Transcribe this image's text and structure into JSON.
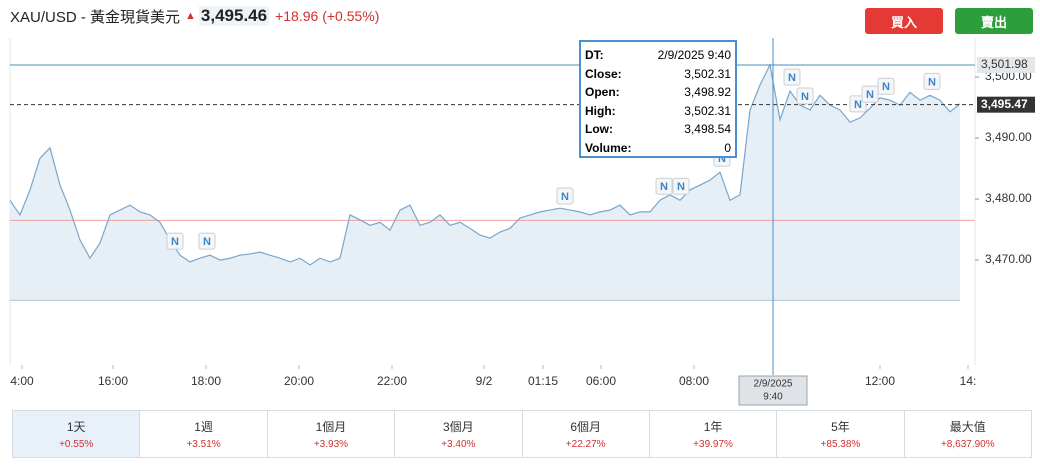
{
  "header": {
    "title": "XAU/USD - 黃金現貨美元",
    "price": "3,495.46",
    "change": "+18.96 (+0.55%)",
    "buy": "買入",
    "sell": "賣出"
  },
  "chart": {
    "type": "line",
    "color": "#7aa6c9",
    "xlim": [
      0,
      96.5
    ],
    "ylim": [
      3452.8,
      3506.4
    ],
    "xticks": [
      {
        "value": 1.2,
        "label": "4:00"
      },
      {
        "value": 10.3,
        "label": "16:00"
      },
      {
        "value": 19.6,
        "label": "18:00"
      },
      {
        "value": 28.9,
        "label": "20:00"
      },
      {
        "value": 38.2,
        "label": "22:00"
      },
      {
        "value": 47.4,
        "label": "9/2"
      },
      {
        "value": 53.3,
        "label": "01:15"
      },
      {
        "value": 59.1,
        "label": "06:00"
      },
      {
        "value": 68.4,
        "label": "08:00"
      },
      {
        "value": 87,
        "label": "12:00"
      },
      {
        "value": 95.8,
        "label": "14:"
      }
    ],
    "yticks": [
      {
        "value": 3470,
        "label": "3,470.00"
      },
      {
        "value": 3480,
        "label": "3,480.00"
      },
      {
        "value": 3490,
        "label": "3,490.00"
      },
      {
        "value": 3500,
        "label": "3,500.00"
      }
    ],
    "values": [
      3479.8,
      3477.4,
      3481.5,
      3486.7,
      3488.4,
      3482.3,
      3478.2,
      3473.3,
      3470.3,
      3472.8,
      3477.4,
      3478.2,
      3479.0,
      3477.9,
      3477.4,
      3476.2,
      3473.3,
      3470.8,
      3469.7,
      3470.3,
      3470.8,
      3470.0,
      3470.3,
      3470.8,
      3471.0,
      3471.3,
      3470.8,
      3470.3,
      3469.7,
      3470.3,
      3469.2,
      3470.3,
      3469.7,
      3470.3,
      3477.4,
      3476.6,
      3475.7,
      3476.2,
      3474.9,
      3478.2,
      3479.0,
      3475.7,
      3476.2,
      3477.4,
      3475.7,
      3476.2,
      3475.2,
      3474.1,
      3473.6,
      3474.6,
      3475.2,
      3476.9,
      3477.4,
      3477.9,
      3478.2,
      3478.5,
      3478.2,
      3477.9,
      3477.4,
      3477.9,
      3478.2,
      3479.0,
      3477.4,
      3477.9,
      3477.9,
      3479.8,
      3480.7,
      3479.8,
      3481.5,
      3482.3,
      3483.1,
      3484.4,
      3479.8,
      3480.7,
      3494.6,
      3498.7,
      3502.0,
      3493.0,
      3497.7,
      3495.4,
      3494.6,
      3497.0,
      3495.4,
      3494.6,
      3492.6,
      3493.3,
      3494.9,
      3496.6,
      3496.2,
      3495.4,
      3497.5,
      3496.2,
      3497.0,
      3496.2,
      3494.3,
      3495.6
    ],
    "area_floor": 3463.4,
    "reference_line": 3476.5,
    "price_lines": [
      {
        "value": 3501.98,
        "label": "3,501.98",
        "color": "#4a8fb8"
      },
      {
        "value": 3495.47,
        "label": "3,495.47",
        "color": "#333333"
      }
    ],
    "news_markers": [
      {
        "x": 16.5,
        "label": "N"
      },
      {
        "x": 19.7,
        "label": "N"
      },
      {
        "x": 55.5,
        "label": "N"
      },
      {
        "x": 65.4,
        "label": "N"
      },
      {
        "x": 67.1,
        "label": "N"
      },
      {
        "x": 71.2,
        "label": "N"
      },
      {
        "x": 78.2,
        "label": "N"
      },
      {
        "x": 79.5,
        "label": "N"
      },
      {
        "x": 84.8,
        "label": "N"
      },
      {
        "x": 86,
        "label": "N"
      },
      {
        "x": 87.6,
        "label": "N"
      },
      {
        "x": 92.2,
        "label": "N"
      }
    ],
    "crosshair": {
      "x": 76.3,
      "label": [
        "2/9/2025",
        "9:40"
      ]
    }
  },
  "tooltip": {
    "rows": [
      [
        "DT:",
        "2/9/2025 9:40"
      ],
      [
        "Close:",
        "3,502.31"
      ],
      [
        "Open:",
        "3,498.92"
      ],
      [
        "High:",
        "3,502.31"
      ],
      [
        "Low:",
        "3,498.54"
      ],
      [
        "Volume:",
        "0"
      ]
    ]
  },
  "periods": [
    {
      "label": "1天",
      "change": "+0.55%"
    },
    {
      "label": "1週",
      "change": "+3.51%"
    },
    {
      "label": "1個月",
      "change": "+3.93%"
    },
    {
      "label": "3個月",
      "change": "+3.40%"
    },
    {
      "label": "6個月",
      "change": "+22.27%"
    },
    {
      "label": "1年",
      "change": "+39.97%"
    },
    {
      "label": "5年",
      "change": "+85.38%"
    },
    {
      "label": "最大值",
      "change": "+8,637.90%"
    }
  ]
}
